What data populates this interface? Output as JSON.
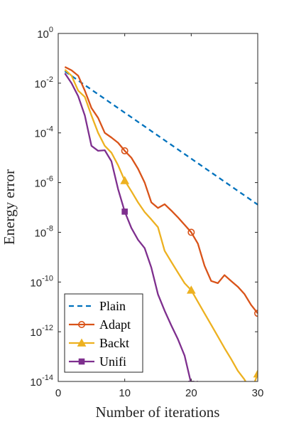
{
  "chart_data": {
    "type": "line",
    "xlabel": "Number of iterations",
    "ylabel": "Energy error",
    "xlim": [
      0,
      30
    ],
    "ylim": [
      1e-14,
      1
    ],
    "yscale": "log",
    "x_ticks": [
      "0",
      "10",
      "20",
      "30"
    ],
    "y_ticks": [
      {
        "base": "10",
        "exp": "0",
        "value": 1
      },
      {
        "base": "10",
        "exp": "-2",
        "value": 0.01
      },
      {
        "base": "10",
        "exp": "-4",
        "value": 0.0001
      },
      {
        "base": "10",
        "exp": "-6",
        "value": 1e-06
      },
      {
        "base": "10",
        "exp": "-8",
        "value": 1e-08
      },
      {
        "base": "10",
        "exp": "-10",
        "value": 1e-10
      },
      {
        "base": "10",
        "exp": "-12",
        "value": 1e-12
      },
      {
        "base": "10",
        "exp": "-14",
        "value": 1e-14
      }
    ],
    "grid": false,
    "legend_position": "bottom-left",
    "series": [
      {
        "name": "Plain",
        "color": "#0072BD",
        "style": "dashed",
        "marker": "none",
        "x": [
          1,
          30
        ],
        "y": [
          0.03,
          1.3e-07
        ]
      },
      {
        "name": "Adapt",
        "color": "#D95319",
        "style": "solid",
        "marker": "circle",
        "x": [
          1,
          2,
          3,
          4,
          5,
          6,
          7,
          8,
          9,
          10,
          11,
          12,
          13,
          14,
          15,
          16,
          17,
          18,
          19,
          20,
          21,
          22,
          23,
          24,
          25,
          26,
          27,
          28,
          29,
          30
        ],
        "y": [
          0.045,
          0.033,
          0.02,
          0.005,
          0.001,
          0.0004,
          0.0001,
          6.5e-05,
          4e-05,
          1.9e-05,
          1e-05,
          3.6e-06,
          1e-06,
          1.6e-07,
          9.5e-08,
          1.35e-07,
          7.5e-08,
          4e-08,
          2e-08,
          1e-08,
          3.5e-09,
          4.5e-10,
          1.1e-10,
          9e-11,
          1.9e-10,
          1.1e-10,
          6.5e-11,
          3.3e-11,
          1.2e-11,
          5.5e-12
        ],
        "marker_x": [
          10,
          20,
          30
        ]
      },
      {
        "name": "Backt",
        "color": "#EDB120",
        "style": "solid",
        "marker": "triangle",
        "x": [
          1,
          2,
          3,
          4,
          5,
          6,
          7,
          8,
          9,
          10,
          11,
          12,
          13,
          14,
          15,
          16,
          17,
          18,
          19,
          20,
          21,
          22,
          23,
          24,
          25,
          26,
          27,
          28,
          29,
          30
        ],
        "y": [
          0.035,
          0.02,
          0.005,
          0.0028,
          0.0005,
          0.0001,
          3e-05,
          1.6e-05,
          5e-06,
          1.2e-06,
          4.5e-07,
          1.6e-07,
          6.5e-08,
          3.3e-08,
          1.6e-08,
          1.8e-09,
          6.5e-10,
          2.4e-10,
          9e-11,
          4.7e-11,
          1.6e-11,
          5.5e-12,
          1.9e-12,
          6.5e-13,
          2.2e-13,
          8e-14,
          2.7e-14,
          1.2e-14,
          4e-15,
          2e-14
        ],
        "marker_x": [
          10,
          20,
          30
        ]
      },
      {
        "name": "Unifi",
        "color": "#7E2F8E",
        "style": "solid",
        "marker": "square",
        "x": [
          1,
          2,
          3,
          4,
          5,
          6,
          7,
          8,
          9,
          10,
          11,
          12,
          13,
          14,
          15,
          16,
          17,
          18,
          19,
          20,
          21
        ],
        "y": [
          0.025,
          0.01,
          0.003,
          0.0005,
          3e-05,
          1.9e-05,
          2e-05,
          7.2e-06,
          5.5e-07,
          6.8e-08,
          1.5e-08,
          5e-09,
          2.3e-09,
          3.8e-10,
          3.2e-11,
          7e-12,
          1.8e-12,
          5e-13,
          1.1e-13,
          8e-15,
          1e-14
        ],
        "marker_x": [
          10,
          20
        ]
      }
    ]
  }
}
